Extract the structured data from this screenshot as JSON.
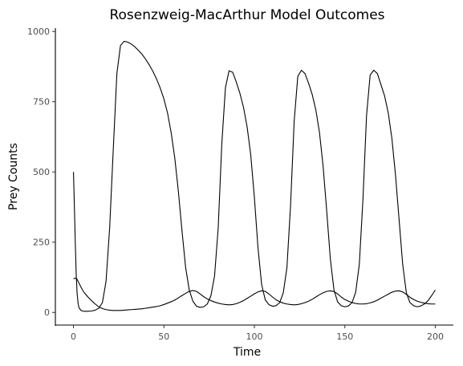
{
  "chart_data": {
    "type": "line",
    "title": "Rosenzweig-MacArthur Model Outcomes",
    "xlabel": "Time",
    "ylabel": "Prey Counts",
    "xlim": [
      -10,
      210
    ],
    "ylim": [
      -45,
      1012
    ],
    "xticks": [
      0,
      50,
      100,
      150,
      200
    ],
    "yticks": [
      0,
      250,
      500,
      750,
      1000
    ],
    "grid": false,
    "series": [
      {
        "x": [
          0,
          0.5,
          1,
          1.5,
          2,
          2.5,
          3,
          4,
          5,
          6,
          8,
          10,
          12,
          14,
          16,
          18,
          20,
          22,
          24,
          26,
          28,
          30,
          32,
          34,
          36,
          38,
          40,
          42,
          44,
          46,
          48,
          50,
          52,
          54,
          56,
          58,
          60,
          62,
          64,
          66,
          68,
          70,
          72,
          74,
          76,
          78,
          80,
          82,
          84,
          86,
          88,
          90,
          92,
          94,
          96,
          98,
          100,
          102,
          104,
          106,
          108,
          110,
          112,
          114,
          116,
          118,
          120,
          122,
          124,
          126,
          128,
          130,
          132,
          134,
          136,
          138,
          140,
          142,
          144,
          146,
          148,
          150,
          152,
          154,
          156,
          158,
          160,
          162,
          164,
          166,
          168,
          170,
          172,
          174,
          176,
          178,
          180,
          182,
          184,
          186,
          188,
          190,
          192,
          194,
          196,
          198,
          200
        ],
        "y": [
          500,
          380,
          250,
          140,
          70,
          35,
          18,
          8,
          5,
          4,
          4,
          5,
          8,
          15,
          35,
          110,
          300,
          580,
          850,
          950,
          965,
          962,
          955,
          945,
          932,
          918,
          900,
          880,
          857,
          830,
          798,
          760,
          710,
          640,
          550,
          430,
          290,
          160,
          80,
          40,
          22,
          18,
          20,
          30,
          60,
          130,
          300,
          600,
          800,
          860,
          855,
          820,
          780,
          730,
          660,
          560,
          410,
          230,
          100,
          45,
          28,
          22,
          24,
          35,
          70,
          160,
          380,
          680,
          840,
          862,
          850,
          815,
          775,
          720,
          640,
          520,
          360,
          190,
          80,
          38,
          24,
          20,
          23,
          35,
          72,
          170,
          400,
          700,
          845,
          862,
          850,
          810,
          770,
          710,
          620,
          490,
          330,
          170,
          70,
          35,
          24,
          20,
          23,
          30,
          42,
          60,
          80
        ]
      },
      {
        "x": [
          0,
          1,
          2,
          3,
          4,
          5,
          6,
          8,
          10,
          12,
          14,
          16,
          18,
          20,
          22,
          24,
          26,
          28,
          30,
          32,
          34,
          36,
          38,
          40,
          42,
          44,
          46,
          48,
          50,
          52,
          54,
          56,
          58,
          60,
          62,
          64,
          66,
          68,
          70,
          72,
          74,
          76,
          78,
          80,
          82,
          84,
          86,
          88,
          90,
          92,
          94,
          96,
          98,
          100,
          102,
          104,
          106,
          108,
          110,
          112,
          114,
          116,
          118,
          120,
          122,
          124,
          126,
          128,
          130,
          132,
          134,
          136,
          138,
          140,
          142,
          144,
          146,
          148,
          150,
          152,
          154,
          156,
          158,
          160,
          162,
          164,
          166,
          168,
          170,
          172,
          174,
          176,
          178,
          180,
          182,
          184,
          186,
          188,
          190,
          192,
          194,
          196,
          198,
          200
        ],
        "y": [
          120,
          122,
          118,
          105,
          92,
          80,
          70,
          55,
          42,
          30,
          20,
          14,
          10,
          8,
          7,
          7,
          7,
          8,
          9,
          10,
          11,
          12,
          13,
          15,
          17,
          19,
          21,
          24,
          28,
          33,
          38,
          44,
          52,
          60,
          68,
          75,
          78,
          75,
          66,
          56,
          48,
          42,
          37,
          33,
          30,
          28,
          27,
          28,
          31,
          36,
          42,
          50,
          58,
          66,
          73,
          77,
          75,
          66,
          55,
          45,
          38,
          33,
          30,
          28,
          27,
          28,
          31,
          35,
          40,
          47,
          55,
          63,
          70,
          75,
          77,
          74,
          66,
          55,
          46,
          40,
          35,
          32,
          30,
          30,
          31,
          34,
          38,
          44,
          51,
          58,
          65,
          72,
          76,
          77,
          73,
          64,
          54,
          46,
          40,
          36,
          33,
          31,
          30,
          30
        ]
      }
    ]
  }
}
